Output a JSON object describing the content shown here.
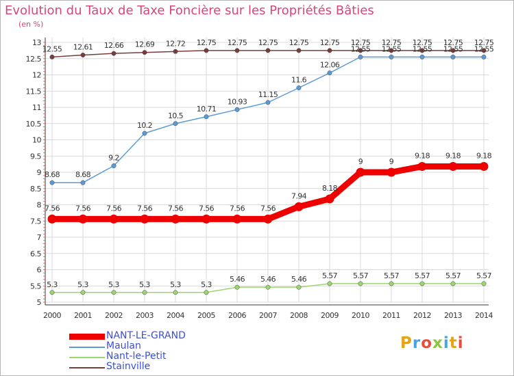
{
  "header": {
    "title": "Evolution du Taux de Taxe Foncière sur les Propriétés Bâties",
    "unit": "(en %)"
  },
  "logo": {
    "text": "Proxiti",
    "letter_colors": [
      "#e8a317",
      "#4aa3df",
      "#e74c3c",
      "#8cc63f",
      "#4aa3df",
      "#e8a317",
      "#e74c3c"
    ]
  },
  "chart_data": {
    "type": "line",
    "title": "Evolution du Taux de Taxe Foncière sur les Propriétés Bâties",
    "xlabel": "",
    "ylabel": "(en %)",
    "x": [
      "2000",
      "2001",
      "2002",
      "2003",
      "2004",
      "2005",
      "2006",
      "2007",
      "2008",
      "2009",
      "2010",
      "2011",
      "2012",
      "2013",
      "2014"
    ],
    "ylim": [
      5,
      13
    ],
    "yticks": [
      "5",
      "5.5",
      "6",
      "6.5",
      "7",
      "7.5",
      "8",
      "8.5",
      "9",
      "9.5",
      "10",
      "10.5",
      "11",
      "11.5",
      "12",
      "12.5",
      "13"
    ],
    "grid": true,
    "legend": "bottom-left",
    "series": [
      {
        "name": "NANT-LE-GRAND",
        "color": "#ee0000",
        "values": [
          7.56,
          7.56,
          7.56,
          7.56,
          7.56,
          7.56,
          7.56,
          7.56,
          7.94,
          8.18,
          9,
          9,
          9.18,
          9.18,
          9.18
        ],
        "labels": [
          "7.56",
          "7.56",
          "7.56",
          "7.56",
          "7.56",
          "7.56",
          "7.56",
          "7.56",
          "7.94",
          "8.18",
          "9",
          "9",
          "9.18",
          "9.18",
          "9.18"
        ]
      },
      {
        "name": "Maulan",
        "color": "#5b9bd5",
        "values": [
          8.68,
          8.68,
          9.2,
          10.2,
          10.5,
          10.71,
          10.93,
          11.15,
          11.6,
          12.06,
          12.55,
          12.55,
          12.55,
          12.55,
          12.55
        ],
        "labels": [
          "8.68",
          "8.68",
          "9.2",
          "10.2",
          "10.5",
          "10.71",
          "10.93",
          "11.15",
          "11.6",
          "12.06",
          "12.55",
          "12.55",
          "12.55",
          "12.55",
          "12.55"
        ]
      },
      {
        "name": "Nant-le-Petit",
        "color": "#9bd770",
        "values": [
          5.3,
          5.3,
          5.3,
          5.3,
          5.3,
          5.3,
          5.46,
          5.46,
          5.46,
          5.57,
          5.57,
          5.57,
          5.57,
          5.57,
          5.57
        ],
        "labels": [
          "5.3",
          "5.3",
          "5.3",
          "5.3",
          "5.3",
          "5.3",
          "5.46",
          "5.46",
          "5.46",
          "5.57",
          "5.57",
          "5.57",
          "5.57",
          "5.57",
          "5.57"
        ]
      },
      {
        "name": "Stainville",
        "color": "#7a3b3b",
        "values": [
          12.55,
          12.61,
          12.66,
          12.69,
          12.72,
          12.75,
          12.75,
          12.75,
          12.75,
          12.75,
          12.75,
          12.75,
          12.75,
          12.75,
          12.75
        ],
        "labels": [
          "12.55",
          "12.61",
          "12.66",
          "12.69",
          "12.72",
          "12.75",
          "12.75",
          "12.75",
          "12.75",
          "12.75",
          "12.75",
          "12.75",
          "12.75",
          "12.75",
          "12.75"
        ]
      }
    ]
  }
}
